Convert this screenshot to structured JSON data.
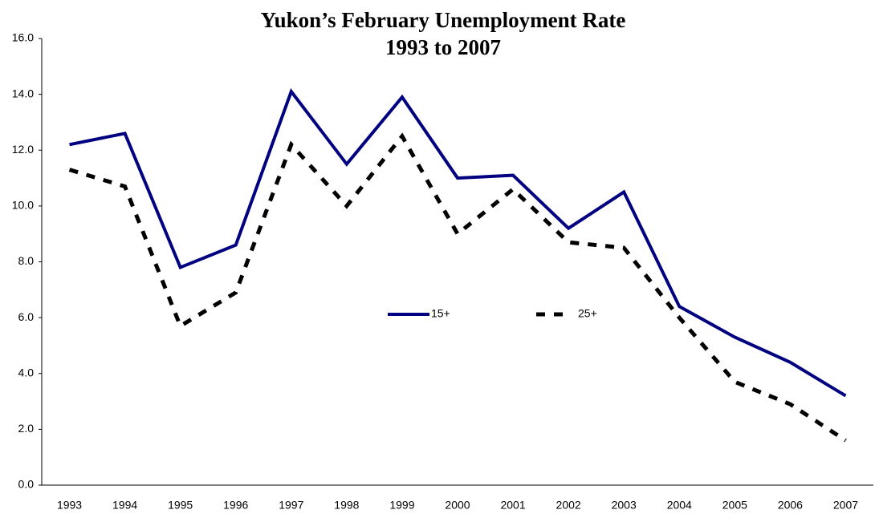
{
  "chart_data": {
    "type": "line",
    "title": "Yukon’s February Unemployment Rate",
    "subtitle": "1993 to 2007",
    "categories": [
      "1993",
      "1994",
      "1995",
      "1996",
      "1997",
      "1998",
      "1999",
      "2000",
      "2001",
      "2002",
      "2003",
      "2004",
      "2005",
      "2006",
      "2007"
    ],
    "series": [
      {
        "name": "15+",
        "color": "#000080",
        "dash": false,
        "values": [
          12.2,
          12.6,
          7.8,
          8.6,
          14.1,
          11.5,
          13.9,
          11.0,
          11.1,
          9.2,
          10.5,
          6.4,
          5.3,
          4.4,
          3.2
        ]
      },
      {
        "name": "25+",
        "color": "#000000",
        "dash": true,
        "values": [
          11.3,
          10.7,
          5.7,
          6.9,
          12.2,
          10.0,
          12.5,
          9.0,
          10.6,
          8.7,
          8.5,
          6.0,
          3.7,
          2.9,
          1.6
        ]
      }
    ],
    "ylim": [
      0,
      16
    ],
    "yticks": [
      {
        "value": 0,
        "label": "0.0"
      },
      {
        "value": 2,
        "label": "2.0"
      },
      {
        "value": 4,
        "label": "4.0"
      },
      {
        "value": 6,
        "label": "6.0"
      },
      {
        "value": 8,
        "label": "8.0"
      },
      {
        "value": 10,
        "label": "10.0"
      },
      {
        "value": 12,
        "label": "12.0"
      },
      {
        "value": 14,
        "label": "14.0"
      },
      {
        "value": 16,
        "label": "16.0"
      }
    ],
    "grid": false
  }
}
